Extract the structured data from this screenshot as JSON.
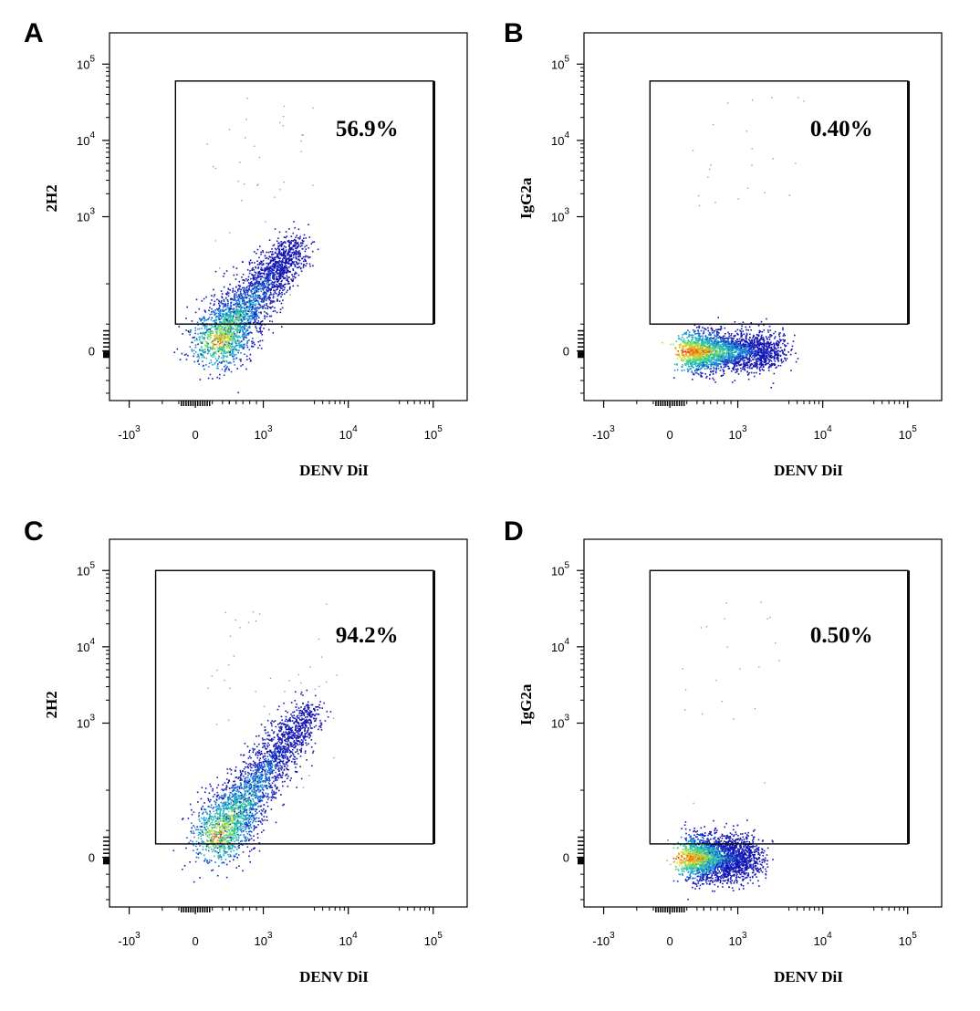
{
  "chart_data": [
    {
      "type": "scatter",
      "panel": "A",
      "xlabel": "DENV DiI",
      "ylabel": "2H2",
      "x_ticks": [
        "-10^3",
        "0",
        "10^3",
        "10^4",
        "10^5"
      ],
      "y_ticks": [
        "0",
        "10^3",
        "10^4",
        "10^5"
      ],
      "gate_percent": "56.9%",
      "gate_x": [
        -300,
        100000
      ],
      "gate_y": [
        200,
        60000
      ],
      "population": {
        "shape": "diagonal",
        "center": [
          300,
          60
        ],
        "extends_to": [
          2500,
          800
        ],
        "events_in_gate_fraction": 0.569
      }
    },
    {
      "type": "scatter",
      "panel": "B",
      "xlabel": "DENV DiI",
      "ylabel": "IgG2a",
      "x_ticks": [
        "-10^3",
        "0",
        "10^3",
        "10^4",
        "10^5"
      ],
      "y_ticks": [
        "0",
        "10^3",
        "10^4",
        "10^5"
      ],
      "gate_percent": "0.40%",
      "gate_x": [
        -300,
        100000
      ],
      "gate_y": [
        200,
        60000
      ],
      "population": {
        "shape": "horizontal",
        "center": [
          300,
          0
        ],
        "extends_to": [
          3000,
          0
        ],
        "events_in_gate_fraction": 0.004
      }
    },
    {
      "type": "scatter",
      "panel": "C",
      "xlabel": "DENV DiI",
      "ylabel": "2H2",
      "x_ticks": [
        "-10^3",
        "0",
        "10^3",
        "10^4",
        "10^5"
      ],
      "y_ticks": [
        "0",
        "10^3",
        "10^4",
        "10^5"
      ],
      "gate_percent": "94.2%",
      "gate_x": [
        -600,
        100000
      ],
      "gate_y": [
        100,
        100000
      ],
      "population": {
        "shape": "diagonal",
        "center": [
          300,
          150
        ],
        "extends_to": [
          3500,
          1500
        ],
        "events_in_gate_fraction": 0.942
      }
    },
    {
      "type": "scatter",
      "panel": "D",
      "xlabel": "DENV DiI",
      "ylabel": "IgG2a",
      "x_ticks": [
        "-10^3",
        "0",
        "10^3",
        "10^4",
        "10^5"
      ],
      "y_ticks": [
        "0",
        "10^3",
        "10^4",
        "10^5"
      ],
      "gate_percent": "0.50%",
      "gate_x": [
        -300,
        100000
      ],
      "gate_y": [
        100,
        100000
      ],
      "population": {
        "shape": "blob",
        "center": [
          300,
          0
        ],
        "extends_to": [
          1500,
          0
        ],
        "events_in_gate_fraction": 0.005
      }
    }
  ]
}
